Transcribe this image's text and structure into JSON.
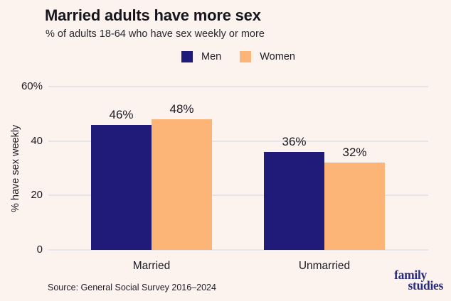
{
  "header": {
    "title": "Married adults have more sex",
    "subtitle": "% of adults 18-64 who have sex weekly or more"
  },
  "footer": {
    "source": "Source: General Social Survey 2016–2024",
    "logo_line1": "family",
    "logo_line2": "studies"
  },
  "colors": {
    "background": "#fdf3ee",
    "men_bar": "#201a78",
    "women_bar": "#fcb477",
    "gridline": "#e4e4e9",
    "logo_navy": "#272c80"
  },
  "chart_data": {
    "type": "bar",
    "title": "Married adults have more sex",
    "subtitle": "% of adults 18-64 who have sex weekly or more",
    "categories": [
      "Married",
      "Unmarried"
    ],
    "series": [
      {
        "name": "Men",
        "color": "#201a78",
        "values": [
          46,
          36
        ]
      },
      {
        "name": "Women",
        "color": "#fcb477",
        "values": [
          48,
          32
        ]
      }
    ],
    "unit": "%",
    "value_labels": [
      [
        "46%",
        "36%"
      ],
      [
        "48%",
        "32%"
      ]
    ],
    "xlabel": "",
    "ylabel": "% have sex weekly",
    "ylim": [
      0,
      60
    ],
    "yticks": [
      {
        "value": 0,
        "label": "0"
      },
      {
        "value": 20,
        "label": "20"
      },
      {
        "value": 40,
        "label": "40"
      },
      {
        "value": 60,
        "label": "60%"
      }
    ],
    "grid": true,
    "legend_position": "top-center"
  }
}
